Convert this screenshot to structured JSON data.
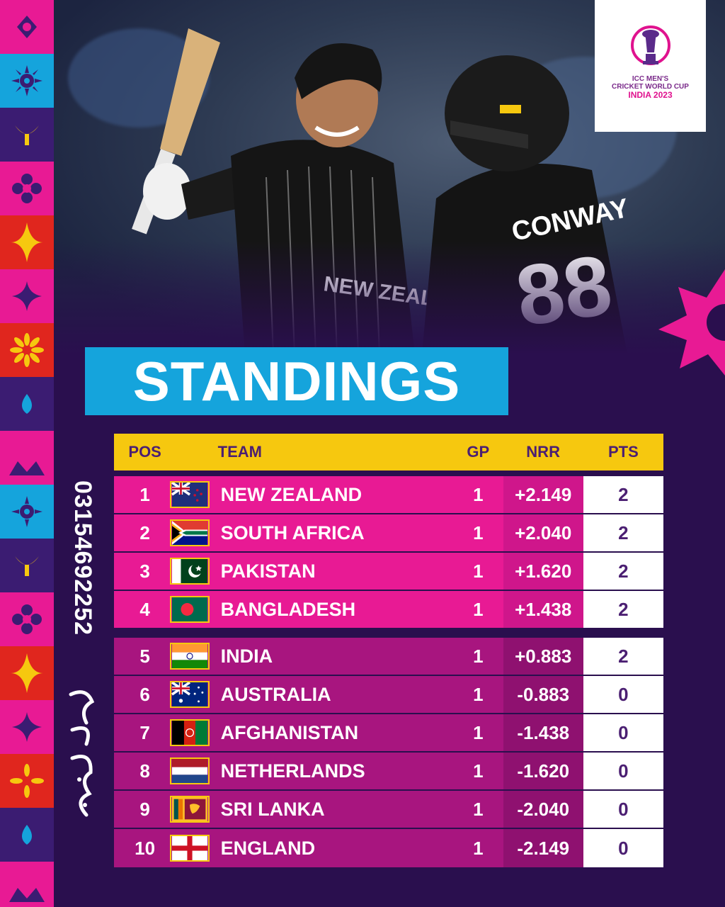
{
  "logo": {
    "line1": "ICC MEN'S",
    "line2": "CRICKET WORLD CUP",
    "line3": "INDIA 2023"
  },
  "photo": {
    "jersey_text": "NEW ZEALAND",
    "player_name": "CONWAY",
    "player_number": "88"
  },
  "title": "STANDINGS",
  "watermark": {
    "phone": "03154692252"
  },
  "table": {
    "headers": {
      "pos": "POS",
      "team": "TEAM",
      "gp": "GP",
      "nrr": "NRR",
      "pts": "PTS"
    },
    "rows": [
      {
        "pos": "1",
        "team": "NEW ZEALAND",
        "flag": "nz-flag-icon",
        "gp": "1",
        "nrr": "+2.149",
        "pts": "2"
      },
      {
        "pos": "2",
        "team": "SOUTH AFRICA",
        "flag": "sa-flag-icon",
        "gp": "1",
        "nrr": "+2.040",
        "pts": "2"
      },
      {
        "pos": "3",
        "team": "PAKISTAN",
        "flag": "pk-flag-icon",
        "gp": "1",
        "nrr": "+1.620",
        "pts": "2"
      },
      {
        "pos": "4",
        "team": "BANGLADESH",
        "flag": "bd-flag-icon",
        "gp": "1",
        "nrr": "+1.438",
        "pts": "2"
      },
      {
        "pos": "5",
        "team": "INDIA",
        "flag": "in-flag-icon",
        "gp": "1",
        "nrr": "+0.883",
        "pts": "2"
      },
      {
        "pos": "6",
        "team": "AUSTRALIA",
        "flag": "au-flag-icon",
        "gp": "1",
        "nrr": "-0.883",
        "pts": "0"
      },
      {
        "pos": "7",
        "team": "AFGHANISTAN",
        "flag": "af-flag-icon",
        "gp": "1",
        "nrr": "-1.438",
        "pts": "0"
      },
      {
        "pos": "8",
        "team": "NETHERLANDS",
        "flag": "nl-flag-icon",
        "gp": "1",
        "nrr": "-1.620",
        "pts": "0"
      },
      {
        "pos": "9",
        "team": "SRI LANKA",
        "flag": "lk-flag-icon",
        "gp": "1",
        "nrr": "-2.040",
        "pts": "0"
      },
      {
        "pos": "10",
        "team": "ENGLAND",
        "flag": "en-flag-icon",
        "gp": "1",
        "nrr": "-2.149",
        "pts": "0"
      }
    ]
  },
  "colors": {
    "background": "#2a0f4e",
    "title_bg": "#15a4dc",
    "header_bg": "#f6c80f",
    "top_row_bg": "#e81a94",
    "bottom_row_bg": "#a8157f",
    "pts_bg": "#ffffff",
    "accent_pink": "#e0128e"
  }
}
